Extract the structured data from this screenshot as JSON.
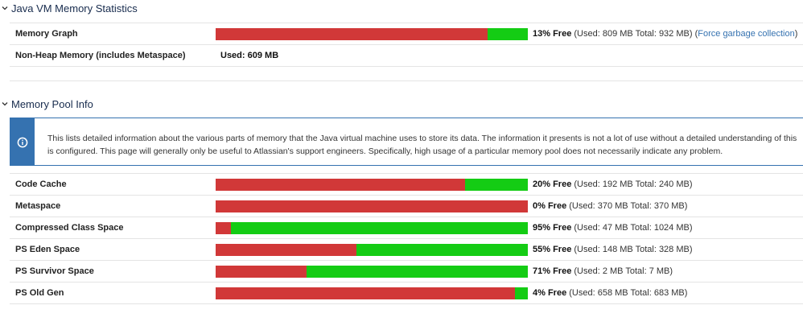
{
  "jvm": {
    "title": "Java VM Memory Statistics",
    "graph": {
      "label": "Memory Graph",
      "free_fraction": 0.13,
      "free_text": "13% Free",
      "detail": "(Used: 809 MB Total: 932 MB)",
      "link_open": "(",
      "link": "Force garbage collection",
      "link_close": ")"
    },
    "nonheap": {
      "label": "Non-Heap Memory (includes Metaspace)",
      "value": "Used: 609 MB"
    }
  },
  "pool": {
    "title": "Memory Pool Info",
    "message_line1": "This lists detailed information about the various parts of memory that the Java virtual machine uses to store its data. The information it presents is not a lot of use without a detailed understanding of this",
    "message_line2": "is configured. This page will generally only be useful to Atlassian's support engineers. Specifically, high usage of a particular memory pool does not necessarily indicate any problem.",
    "rows": [
      {
        "label": "Code Cache",
        "free_fraction": 0.2,
        "free_text": "20% Free",
        "detail": "(Used: 192 MB Total: 240 MB)"
      },
      {
        "label": "Metaspace",
        "free_fraction": 0.0,
        "free_text": "0% Free",
        "detail": "(Used: 370 MB Total: 370 MB)"
      },
      {
        "label": "Compressed Class Space",
        "free_fraction": 0.95,
        "free_text": "95% Free",
        "detail": "(Used: 47 MB Total: 1024 MB)"
      },
      {
        "label": "PS Eden Space",
        "free_fraction": 0.55,
        "free_text": "55% Free",
        "detail": "(Used: 148 MB Total: 328 MB)"
      },
      {
        "label": "PS Survivor Space",
        "free_fraction": 0.71,
        "free_text": "71% Free",
        "detail": "(Used: 2 MB Total: 7 MB)"
      },
      {
        "label": "PS Old Gen",
        "free_fraction": 0.04,
        "free_text": "4% Free",
        "detail": "(Used: 658 MB Total: 683 MB)"
      }
    ]
  },
  "colors": {
    "used": "#d13838",
    "free": "#14cc14",
    "link": "#3572b0",
    "info_border": "#3572b0"
  }
}
